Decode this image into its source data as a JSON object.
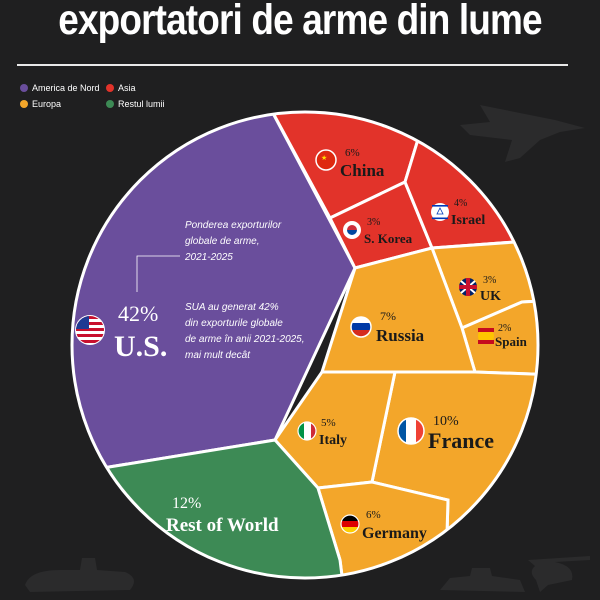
{
  "header": {
    "title": "exportatori de arme din lume"
  },
  "legend": [
    {
      "label": "America de Nord",
      "color": "#6a4e9c"
    },
    {
      "label": "Asia",
      "color": "#e2332a"
    },
    {
      "label": "Europa",
      "color": "#f3a62a"
    },
    {
      "label": "Restul lumii",
      "color": "#3d8a55"
    }
  ],
  "annotation": {
    "share_title": [
      "Ponderea exporturilor",
      "globale de arme,",
      "2021-2025"
    ],
    "us_note": [
      "SUA au generat 42%",
      "din exporturile globale",
      "de arme în anii 2021-2025,",
      "mai mult decât"
    ]
  },
  "chart_data": {
    "type": "pie",
    "title": "exportatori de arme din lume",
    "unit": "%",
    "slices": [
      {
        "name": "U.S.",
        "value": 42,
        "label": "42%",
        "region": "America de Nord",
        "flag": "us-flag-icon"
      },
      {
        "name": "China",
        "value": 6,
        "label": "6%",
        "region": "Asia",
        "flag": "china-flag-icon"
      },
      {
        "name": "S. Korea",
        "value": 3,
        "label": "3%",
        "region": "Asia",
        "flag": "south-korea-flag-icon"
      },
      {
        "name": "Israel",
        "value": 4,
        "label": "4%",
        "region": "Asia",
        "flag": "israel-flag-icon"
      },
      {
        "name": "UK",
        "value": 3,
        "label": "3%",
        "region": "Europa",
        "flag": "uk-flag-icon"
      },
      {
        "name": "Spain",
        "value": 2,
        "label": "2%",
        "region": "Europa",
        "flag": "spain-flag-icon"
      },
      {
        "name": "Russia",
        "value": 7,
        "label": "7%",
        "region": "Europa",
        "flag": "russia-flag-icon"
      },
      {
        "name": "France",
        "value": 10,
        "label": "10%",
        "region": "Europa",
        "flag": "france-flag-icon"
      },
      {
        "name": "Italy",
        "value": 5,
        "label": "5%",
        "region": "Europa",
        "flag": "italy-flag-icon"
      },
      {
        "name": "Germany",
        "value": 6,
        "label": "6%",
        "region": "Europa",
        "flag": "germany-flag-icon"
      },
      {
        "name": "Rest of World",
        "value": 12,
        "label": "12%",
        "region": "Restul lumii",
        "flag": ""
      }
    ]
  }
}
